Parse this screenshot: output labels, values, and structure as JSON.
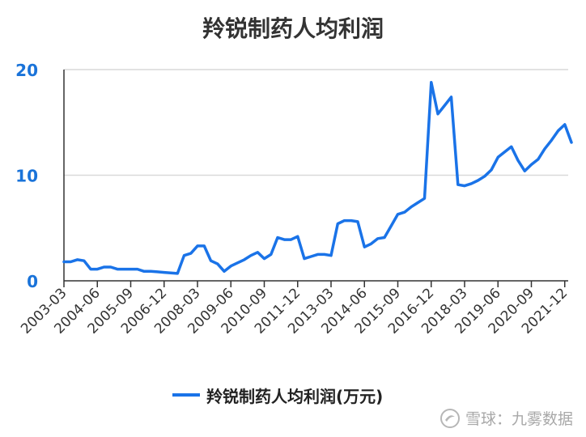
{
  "chart_data": {
    "type": "line",
    "title": "羚锐制药人均利润",
    "xlabel": "",
    "ylabel": "",
    "ylim": [
      0,
      20
    ],
    "yticks": [
      0,
      10,
      20
    ],
    "grid": true,
    "legend_position": "bottom",
    "color": "#1a73e8",
    "xtick_labels": [
      "2003-03",
      "2004-06",
      "2005-09",
      "2006-12",
      "2008-03",
      "2009-06",
      "2010-09",
      "2011-12",
      "2013-03",
      "2014-06",
      "2015-09",
      "2016-12",
      "2018-03",
      "2019-06",
      "2020-09",
      "2021-12"
    ],
    "series": [
      {
        "name": "羚锐制药人均利润(万元)",
        "values": [
          1.8,
          1.8,
          2.0,
          1.9,
          1.1,
          1.1,
          1.3,
          1.3,
          1.1,
          1.1,
          1.1,
          1.1,
          0.9,
          0.9,
          0.85,
          0.8,
          0.75,
          0.7,
          2.4,
          2.6,
          3.3,
          3.3,
          1.9,
          1.6,
          0.9,
          1.4,
          1.7,
          2.0,
          2.4,
          2.7,
          2.1,
          2.5,
          4.1,
          3.9,
          3.9,
          4.2,
          2.1,
          2.3,
          2.5,
          2.5,
          2.4,
          5.4,
          5.7,
          5.7,
          5.6,
          3.2,
          3.5,
          4.0,
          4.1,
          5.2,
          6.3,
          6.5,
          7.0,
          7.4,
          7.8,
          18.8,
          15.8,
          16.6,
          17.4,
          9.1,
          9.0,
          9.2,
          9.5,
          9.9,
          10.5,
          11.7,
          12.2,
          12.7,
          11.4,
          10.4,
          11.0,
          11.5,
          12.5,
          13.3,
          14.2,
          14.8,
          13.1
        ]
      }
    ]
  },
  "watermark": {
    "logo_icon": "snowball-icon",
    "text": "雪球：九雾数据"
  }
}
